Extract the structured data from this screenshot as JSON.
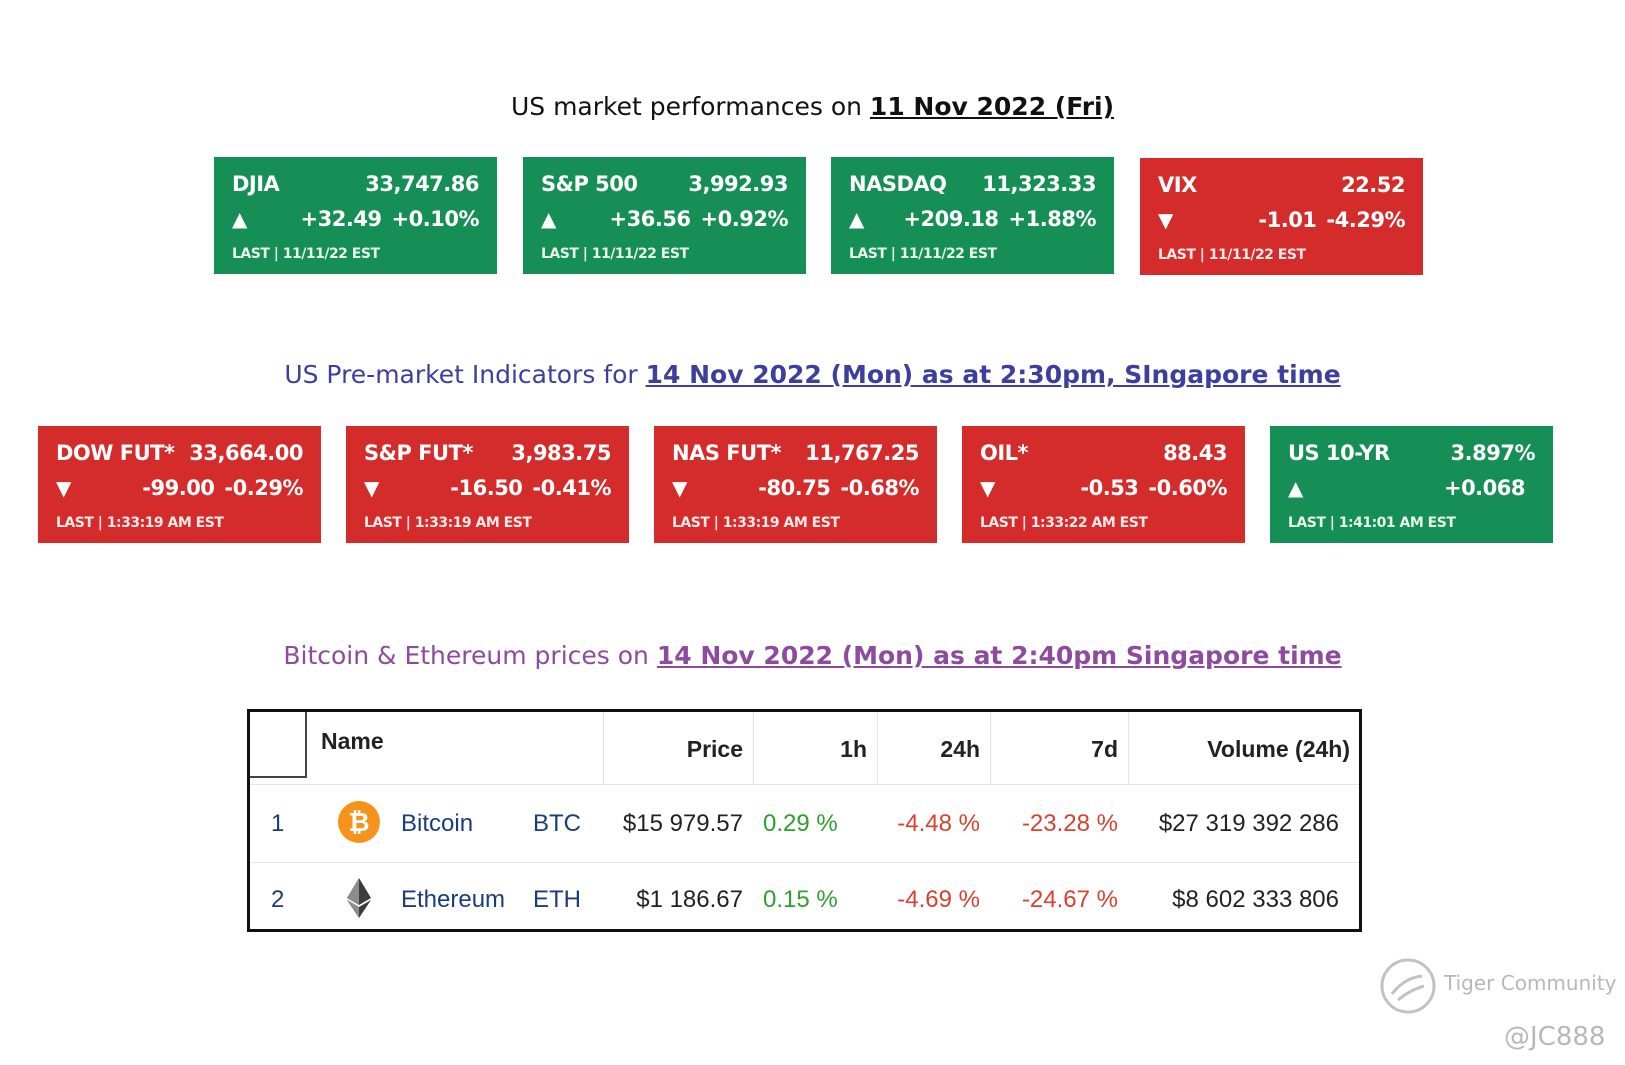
{
  "headings": {
    "us_market": {
      "prefix": "US market performances on ",
      "date": "11 Nov 2022 (Fri)"
    },
    "premarket": {
      "prefix": "US Pre-market Indicators for ",
      "date": "14 Nov 2022 (Mon) as at 2:30pm, SIngapore time"
    },
    "crypto": {
      "prefix": "Bitcoin & Ethereum prices on ",
      "date": "14 Nov 2022 (Mon) as at  2:40pm Singapore time"
    }
  },
  "colors": {
    "green": "#168f56",
    "red": "#d42b2b"
  },
  "us_market_tiles": [
    {
      "name": "DJIA",
      "value": "33,747.86",
      "arrow": "▲",
      "change": "+32.49",
      "pct": "+0.10%",
      "last": "LAST | 11/11/22 EST",
      "trend": "up"
    },
    {
      "name": "S&P 500",
      "value": "3,992.93",
      "arrow": "▲",
      "change": "+36.56",
      "pct": "+0.92%",
      "last": "LAST | 11/11/22 EST",
      "trend": "up"
    },
    {
      "name": "NASDAQ",
      "value": "11,323.33",
      "arrow": "▲",
      "change": "+209.18",
      "pct": "+1.88%",
      "last": "LAST | 11/11/22 EST",
      "trend": "up"
    },
    {
      "name": "VIX",
      "value": "22.52",
      "arrow": "▼",
      "change": "-1.01",
      "pct": "-4.29%",
      "last": "LAST | 11/11/22 EST",
      "trend": "down"
    }
  ],
  "premarket_tiles": [
    {
      "name": "DOW FUT*",
      "value": "33,664.00",
      "arrow": "▼",
      "change": "-99.00",
      "pct": "-0.29%",
      "last": "LAST | 1:33:19 AM EST",
      "trend": "down"
    },
    {
      "name": "S&P FUT*",
      "value": "3,983.75",
      "arrow": "▼",
      "change": "-16.50",
      "pct": "-0.41%",
      "last": "LAST | 1:33:19 AM EST",
      "trend": "down"
    },
    {
      "name": "NAS FUT*",
      "value": "11,767.25",
      "arrow": "▼",
      "change": "-80.75",
      "pct": "-0.68%",
      "last": "LAST | 1:33:19 AM EST",
      "trend": "down"
    },
    {
      "name": "OIL*",
      "value": "88.43",
      "arrow": "▼",
      "change": "-0.53",
      "pct": "-0.60%",
      "last": "LAST | 1:33:22 AM EST",
      "trend": "down"
    },
    {
      "name": "US 10-YR",
      "value": "3.897%",
      "arrow": "▲",
      "change": "+0.068",
      "pct": "",
      "last": "LAST | 1:41:01 AM EST",
      "trend": "up"
    }
  ],
  "crypto_table": {
    "headers": {
      "name": "Name",
      "price": "Price",
      "h1": "1h",
      "h24": "24h",
      "d7": "7d",
      "volume": "Volume (24h)"
    },
    "rows": [
      {
        "rank": "1",
        "name": "Bitcoin",
        "symbol": "BTC",
        "price": "$15 979.57",
        "h1": "0.29 %",
        "h24": "-4.48 %",
        "d7": "-23.28 %",
        "volume": "$27 319 392 286",
        "icon": "bitcoin-icon"
      },
      {
        "rank": "2",
        "name": "Ethereum",
        "symbol": "ETH",
        "price": "$1 186.67",
        "h1": "0.15 %",
        "h24": "-4.69 %",
        "d7": "-24.67 %",
        "volume": "$8 602 333 806",
        "icon": "ethereum-icon"
      }
    ]
  },
  "watermark": {
    "brand": "Tiger Community",
    "handle": "@JC888"
  }
}
